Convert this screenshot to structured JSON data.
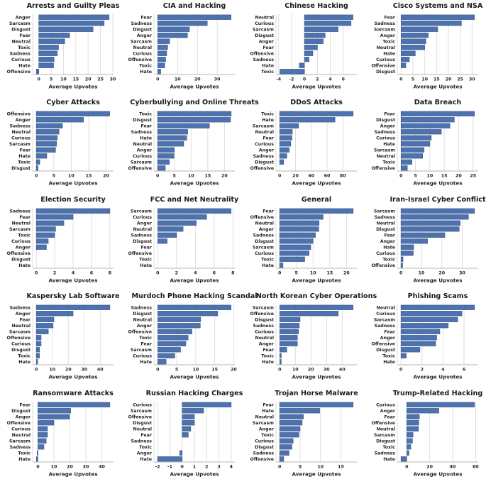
{
  "figure_title": "",
  "axis_label": "Average Upvotes",
  "colors": {
    "bar": "#4c72b0",
    "bar_edge": "#3a5684",
    "grid": "#dcdcdc",
    "spine": "#b5b5b5",
    "text": "#262626",
    "background": "#ffffff"
  },
  "chart_data": [
    {
      "type": "bar",
      "orientation": "horizontal",
      "title": "Arrests and Guilty Pleas",
      "categories": [
        "Anger",
        "Sarcasm",
        "Disgust",
        "Fear",
        "Neutral",
        "Toxic",
        "Sadness",
        "Curious",
        "Hate",
        "Offensive"
      ],
      "values": [
        28.5,
        26.5,
        22,
        12.5,
        10.5,
        8,
        7.5,
        6.2,
        6,
        -1
      ],
      "xlabel": "Average Upvotes",
      "xticks": [
        0,
        5,
        10,
        15,
        20,
        25,
        30
      ],
      "xlim": [
        -2.5,
        30.3
      ],
      "grid": true,
      "legend": false
    },
    {
      "type": "bar",
      "orientation": "horizontal",
      "title": "CIA and Hacking",
      "categories": [
        "Fear",
        "Sadness",
        "Disgust",
        "Anger",
        "Sarcasm",
        "Neutral",
        "Curious",
        "Offensive",
        "Toxic",
        "Hate"
      ],
      "values": [
        37,
        25,
        16,
        15,
        6,
        5,
        4.5,
        4,
        3.5,
        1.5
      ],
      "xlabel": "Average Upvotes",
      "xticks": [
        0,
        10,
        20,
        30
      ],
      "xlim": [
        -1.9,
        38.9
      ],
      "grid": true,
      "legend": false
    },
    {
      "type": "bar",
      "orientation": "horizontal",
      "title": "Chinese Hacking",
      "categories": [
        "Neutral",
        "Curious",
        "Sarcasm",
        "Disgust",
        "Anger",
        "Fear",
        "Offensive",
        "Sadness",
        "Hate",
        "Toxic"
      ],
      "values": [
        7.5,
        7.2,
        5.2,
        3.2,
        2.9,
        2,
        1.3,
        0.7,
        -0.8,
        -3.8
      ],
      "xlabel": "Average Upvotes",
      "xticks": [
        -4,
        -2,
        0,
        2,
        4,
        6
      ],
      "xlim": [
        -4.4,
        8.1
      ],
      "grid": true,
      "legend": false
    },
    {
      "type": "bar",
      "orientation": "horizontal",
      "title": "Cisco Systems and NSA",
      "categories": [
        "Fear",
        "Sadness",
        "Sarcasm",
        "Anger",
        "Toxic",
        "Neutral",
        "Hate",
        "Curious",
        "Offensive",
        "Disgust"
      ],
      "values": [
        31,
        25.5,
        15.5,
        11.5,
        10.5,
        10,
        6,
        3.5,
        2,
        0
      ],
      "xlabel": "Average Upvotes",
      "xticks": [
        0,
        5,
        10,
        15,
        20,
        25,
        30
      ],
      "xlim": [
        -1.6,
        32.6
      ],
      "grid": true,
      "legend": false
    },
    {
      "type": "bar",
      "orientation": "horizontal",
      "title": "Cyber Attacks",
      "categories": [
        "Offensive",
        "Anger",
        "Sadness",
        "Neutral",
        "Curious",
        "Sarcasm",
        "Fear",
        "Hate",
        "Toxic",
        "Disgust"
      ],
      "values": [
        21,
        13.5,
        7.5,
        6.5,
        6,
        5.8,
        5.5,
        3,
        1,
        0.5
      ],
      "xlabel": "Average Upvotes",
      "xticks": [
        0,
        5,
        10,
        15,
        20
      ],
      "xlim": [
        -1.05,
        22.1
      ],
      "grid": true,
      "legend": false
    },
    {
      "type": "bar",
      "orientation": "horizontal",
      "title": "Cyberbullying and Online Threats",
      "categories": [
        "Toxic",
        "Disgust",
        "Fear",
        "Sadness",
        "Hate",
        "Neutral",
        "Anger",
        "Curious",
        "Sarcasm",
        "Offensive"
      ],
      "values": [
        22,
        21.8,
        15.5,
        9,
        8.7,
        7.8,
        5,
        4.9,
        3.5,
        2.3
      ],
      "xlabel": "Average Upvotes",
      "xticks": [
        0,
        5,
        10,
        15,
        20
      ],
      "xlim": [
        -1.1,
        23.1
      ],
      "grid": true,
      "legend": false
    },
    {
      "type": "bar",
      "orientation": "horizontal",
      "title": "DDoS Attacks",
      "categories": [
        "Toxic",
        "Hate",
        "Sarcasm",
        "Neutral",
        "Fear",
        "Curious",
        "Anger",
        "Sadness",
        "Disgust",
        "Offensive"
      ],
      "values": [
        93,
        70,
        24,
        16,
        15.5,
        14,
        12,
        9,
        5,
        0
      ],
      "xlabel": "Average Upvotes",
      "xticks": [
        0,
        20,
        40,
        60,
        80
      ],
      "xlim": [
        -4.7,
        97.7
      ],
      "grid": true,
      "legend": false
    },
    {
      "type": "bar",
      "orientation": "horizontal",
      "title": "Data Breach",
      "categories": [
        "Fear",
        "Disgust",
        "Anger",
        "Sadness",
        "Curious",
        "Hate",
        "Sarcasm",
        "Neutral",
        "Toxic",
        "Offensive"
      ],
      "values": [
        25.5,
        18.5,
        17,
        14,
        10.5,
        10,
        8,
        7.5,
        3.8,
        2.2
      ],
      "xlabel": "Average Upvotes",
      "xticks": [
        0,
        5,
        10,
        15,
        20,
        25
      ],
      "xlim": [
        -1.3,
        26.8
      ],
      "grid": true,
      "legend": false
    },
    {
      "type": "bar",
      "orientation": "horizontal",
      "title": "Election Security",
      "categories": [
        "Sadness",
        "Fear",
        "Neutral",
        "Sarcasm",
        "Toxic",
        "Curious",
        "Anger",
        "Offensive",
        "Disgust",
        "Hate"
      ],
      "values": [
        8,
        4,
        3,
        2.1,
        2,
        1.3,
        1.1,
        0,
        0,
        0
      ],
      "xlabel": "Average Upvotes",
      "xticks": [
        0,
        2,
        4,
        6,
        8
      ],
      "xlim": [
        -0.4,
        8.4
      ],
      "grid": true,
      "legend": false
    },
    {
      "type": "bar",
      "orientation": "horizontal",
      "title": "FCC and Net Neutrality",
      "categories": [
        "Sarcasm",
        "Curious",
        "Anger",
        "Neutral",
        "Sadness",
        "Disgust",
        "Fear",
        "Offensive",
        "Toxic",
        "Hate"
      ],
      "values": [
        7.8,
        5.2,
        4.1,
        2.7,
        2,
        1,
        0,
        0,
        0,
        0
      ],
      "xlabel": "Average Upvotes",
      "xticks": [
        0,
        2,
        4,
        6,
        8
      ],
      "xlim": [
        -0.4,
        8.2
      ],
      "grid": true,
      "legend": false
    },
    {
      "type": "bar",
      "orientation": "horizontal",
      "title": "General",
      "categories": [
        "Fear",
        "Offensive",
        "Neutral",
        "Anger",
        "Sadness",
        "Disgust",
        "Sarcasm",
        "Curious",
        "Toxic",
        "Hate"
      ],
      "values": [
        22,
        13,
        11.8,
        11.7,
        10.7,
        10,
        9.3,
        8.8,
        7.5,
        1
      ],
      "xlabel": "Average Upvotes",
      "xticks": [
        0,
        5,
        10,
        15,
        20
      ],
      "xlim": [
        -1.1,
        23.1
      ],
      "grid": true,
      "legend": false
    },
    {
      "type": "bar",
      "orientation": "horizontal",
      "title": "Iran-Israel Cyber Conflict",
      "categories": [
        "Sarcasm",
        "Sadness",
        "Neutral",
        "Disgust",
        "Fear",
        "Anger",
        "Hate",
        "Curious",
        "Toxic",
        "Offensive"
      ],
      "values": [
        36,
        33,
        29,
        28.5,
        21.5,
        13,
        6.2,
        6,
        1,
        0.8
      ],
      "xlabel": "Average Upvotes",
      "xticks": [
        0,
        10,
        20,
        30
      ],
      "xlim": [
        -1.8,
        37.8
      ],
      "grid": true,
      "legend": false
    },
    {
      "type": "bar",
      "orientation": "horizontal",
      "title": "Kaspersky Lab Software",
      "categories": [
        "Sadness",
        "Anger",
        "Fear",
        "Neutral",
        "Sarcasm",
        "Offensive",
        "Curious",
        "Disgust",
        "Toxic",
        "Hate"
      ],
      "values": [
        46,
        23,
        11,
        10.5,
        7.5,
        3,
        3,
        2,
        2,
        0.8
      ],
      "xlabel": "Average Upvotes",
      "xticks": [
        0,
        10,
        20,
        30,
        40
      ],
      "xlim": [
        -2.3,
        48.3
      ],
      "grid": true,
      "legend": false
    },
    {
      "type": "bar",
      "orientation": "horizontal",
      "title": "Murdoch Phone Hacking Scandal",
      "categories": [
        "Sadness",
        "Disgust",
        "Neutral",
        "Anger",
        "Offensive",
        "Toxic",
        "Fear",
        "Sarcasm",
        "Curious",
        "Hate"
      ],
      "values": [
        19.3,
        15.8,
        11.3,
        11.2,
        9,
        8,
        7.4,
        6,
        4.5,
        2.2
      ],
      "xlabel": "Average Upvotes",
      "xticks": [
        0,
        5,
        10,
        15,
        20
      ],
      "xlim": [
        -1,
        20.3
      ],
      "grid": true,
      "legend": false
    },
    {
      "type": "bar",
      "orientation": "horizontal",
      "title": "North Korean Cyber Operations",
      "categories": [
        "Sarcasm",
        "Offensive",
        "Disgust",
        "Sadness",
        "Curious",
        "Neutral",
        "Anger",
        "Fear",
        "Toxic",
        "Hate"
      ],
      "values": [
        47,
        37.5,
        13,
        12.5,
        12,
        11.3,
        11.3,
        4.5,
        1,
        1
      ],
      "xlabel": "Average Upvotes",
      "xticks": [
        0,
        10,
        20,
        30,
        40
      ],
      "xlim": [
        -2.4,
        49.4
      ],
      "grid": true,
      "legend": false
    },
    {
      "type": "bar",
      "orientation": "horizontal",
      "title": "Phishing Scams",
      "categories": [
        "Neutral",
        "Curious",
        "Sarcasm",
        "Sadness",
        "Fear",
        "Anger",
        "Offensive",
        "Disgust",
        "Toxic",
        "Hate"
      ],
      "values": [
        7,
        5.8,
        5.4,
        4.5,
        3.7,
        3.4,
        3.3,
        1.8,
        0.5,
        0
      ],
      "xlabel": "Average Upvotes",
      "xticks": [
        0,
        2,
        4,
        6
      ],
      "xlim": [
        -0.35,
        7.35
      ],
      "grid": true,
      "legend": false
    },
    {
      "type": "bar",
      "orientation": "horizontal",
      "title": "Ransomware Attacks",
      "categories": [
        "Fear",
        "Disgust",
        "Anger",
        "Offensive",
        "Curious",
        "Neutral",
        "Sarcasm",
        "Sadness",
        "Toxic",
        "Hate"
      ],
      "values": [
        45,
        20.5,
        19.8,
        10,
        6,
        6,
        5.2,
        3.8,
        -0.5,
        -1
      ],
      "xlabel": "Average Upvotes",
      "xticks": [
        0,
        10,
        20,
        30,
        40
      ],
      "xlim": [
        -3.3,
        47.3
      ],
      "grid": true,
      "legend": false
    },
    {
      "type": "bar",
      "orientation": "horizontal",
      "title": "Russian Hacking Charges",
      "categories": [
        "Curious",
        "Sarcasm",
        "Offensive",
        "Disgust",
        "Neutral",
        "Fear",
        "Sadness",
        "Toxic",
        "Anger",
        "Hate"
      ],
      "values": [
        4,
        1.75,
        1,
        1,
        0.7,
        0.5,
        0,
        0,
        -0.2,
        -2
      ],
      "xlabel": "Average Upvotes",
      "xticks": [
        -2,
        -1,
        0,
        1,
        2,
        3,
        4
      ],
      "xlim": [
        -2.3,
        4.3
      ],
      "grid": true,
      "legend": false
    },
    {
      "type": "bar",
      "orientation": "horizontal",
      "title": "Trojan Horse Malware",
      "categories": [
        "Fear",
        "Hate",
        "Neutral",
        "Sarcasm",
        "Anger",
        "Toxic",
        "Curious",
        "Disgust",
        "Sadness",
        "Offensive"
      ],
      "values": [
        18,
        9.8,
        5.8,
        5.5,
        5,
        4.7,
        3.3,
        3,
        2.3,
        1
      ],
      "xlabel": "Average Upvotes",
      "xticks": [
        0,
        5,
        10,
        15
      ],
      "xlim": [
        -0.9,
        18.9
      ],
      "grid": true,
      "legend": false
    },
    {
      "type": "bar",
      "orientation": "horizontal",
      "title": "Trump-Related Hacking",
      "categories": [
        "Curious",
        "Anger",
        "Fear",
        "Offensive",
        "Neutral",
        "Sarcasm",
        "Disgust",
        "Toxic",
        "Sadness",
        "Hate"
      ],
      "values": [
        59,
        28,
        11,
        10.5,
        10.2,
        5.5,
        5,
        3.5,
        2,
        -5
      ],
      "xlabel": "Average Upvotes",
      "xticks": [
        0,
        20,
        40,
        60
      ],
      "xlim": [
        -8.2,
        62.2
      ],
      "grid": true,
      "legend": false
    }
  ]
}
